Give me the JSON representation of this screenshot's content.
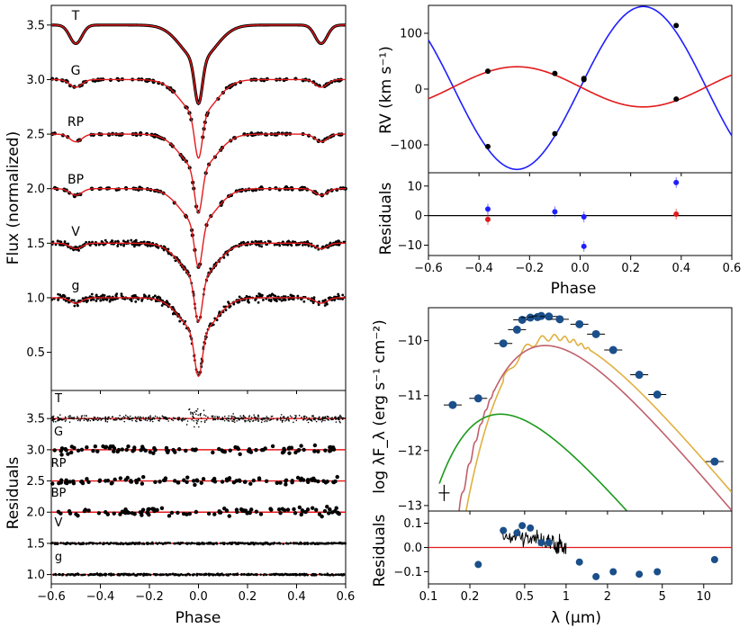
{
  "colors": {
    "model": "#e31a1c",
    "primary_rv": "#1f1fff",
    "secondary_rv": "#e31a1c",
    "sed_total": "#c0606a",
    "sed_star1": "#e0b040",
    "sed_star2": "#1a9a1a",
    "point": "#1a4f8a"
  },
  "chart_data": [
    {
      "id": "lightcurves",
      "type": "line",
      "ylabel": "Flux (normalized)",
      "xlim": [
        -0.6,
        0.6
      ],
      "ylim": [
        0.15,
        3.68
      ],
      "yticks": [
        "0.5",
        "1.0",
        "1.5",
        "2.0",
        "2.5",
        "3.0",
        "3.5"
      ],
      "bands": [
        {
          "name": "T",
          "offset": 2.5,
          "primary_depth": 0.72,
          "secondary_depth": 0.17
        },
        {
          "name": "G",
          "offset": 2.0,
          "primary_depth": 0.72,
          "secondary_depth": 0.07
        },
        {
          "name": "RP",
          "offset": 1.5,
          "primary_depth": 0.72,
          "secondary_depth": 0.07
        },
        {
          "name": "BP",
          "offset": 1.0,
          "primary_depth": 0.72,
          "secondary_depth": 0.06
        },
        {
          "name": "V",
          "offset": 0.5,
          "primary_depth": 0.72,
          "secondary_depth": 0.05
        },
        {
          "name": "g",
          "offset": 0.0,
          "primary_depth": 0.72,
          "secondary_depth": 0.05
        }
      ]
    },
    {
      "id": "lc_residuals",
      "type": "scatter",
      "xlabel": "Phase",
      "ylabel": "Residuals",
      "xlim": [
        -0.6,
        0.6
      ],
      "ylim": [
        0.85,
        3.95
      ],
      "xticks": [
        "−0.6",
        "−0.4",
        "−0.2",
        "0.0",
        "0.2",
        "0.4",
        "0.6"
      ],
      "yticks": [
        "1.0",
        "1.5",
        "2.0",
        "2.5",
        "3.0",
        "3.5"
      ],
      "bands": [
        "T",
        "G",
        "RP",
        "BP",
        "V",
        "g"
      ],
      "levels": [
        3.5,
        3.0,
        2.5,
        2.0,
        1.5,
        1.0
      ]
    },
    {
      "id": "rv",
      "type": "line",
      "ylabel": "RV (km s⁻¹)",
      "xlim": [
        -0.6,
        0.6
      ],
      "ylim": [
        -150,
        150
      ],
      "yticks": [
        "−100",
        "0",
        "100"
      ],
      "primary_model": {
        "gamma": 2,
        "K": 146
      },
      "secondary_model": {
        "gamma": 4,
        "K": 36
      },
      "primary_points": {
        "x": [
          -0.365,
          -0.1,
          0.015,
          0.38
        ],
        "y": [
          -103,
          -80,
          17,
          114
        ]
      },
      "secondary_points": {
        "x": [
          -0.365,
          -0.1,
          0.015,
          0.38
        ],
        "y": [
          32,
          28,
          19,
          -18
        ]
      }
    },
    {
      "id": "rv_residuals",
      "type": "scatter",
      "xlabel": "Phase",
      "ylabel": "Residuals",
      "xlim": [
        -0.6,
        0.6
      ],
      "ylim": [
        -13.5,
        14.5
      ],
      "xticks": [
        "−0.6",
        "−0.4",
        "−0.2",
        "0.0",
        "0.2",
        "0.4",
        "0.6"
      ],
      "yticks": [
        "−10",
        "0",
        "10"
      ],
      "primary": {
        "x": [
          -0.365,
          -0.1,
          0.015,
          0.015,
          0.38
        ],
        "y": [
          2.2,
          1.3,
          -0.4,
          -10.4,
          11.2
        ]
      },
      "secondary": {
        "x": [
          -0.365,
          0.38
        ],
        "y": [
          -1.3,
          0.5
        ]
      }
    },
    {
      "id": "sed",
      "type": "line",
      "ylabel": "log λF_λ (erg s⁻¹ cm⁻²)",
      "xscale": "log",
      "xlim": [
        0.1,
        16
      ],
      "ylim": [
        -13.1,
        -9.4
      ],
      "yticks": [
        "−13",
        "−12",
        "−11",
        "−10"
      ],
      "photometry": {
        "x": [
          0.15,
          0.23,
          0.35,
          0.44,
          0.48,
          0.55,
          0.62,
          0.66,
          0.75,
          0.9,
          1.25,
          1.65,
          2.2,
          3.4,
          4.6,
          12
        ],
        "y": [
          -11.17,
          -11.05,
          -10.05,
          -9.8,
          -9.62,
          -9.58,
          -9.57,
          -9.55,
          -9.56,
          -9.61,
          -9.7,
          -9.88,
          -10.17,
          -10.62,
          -10.98,
          -12.2
        ]
      }
    },
    {
      "id": "sed_residuals",
      "type": "scatter",
      "xlabel": "λ (μm)",
      "ylabel": "Residuals",
      "xscale": "log",
      "xlim": [
        0.1,
        16
      ],
      "ylim": [
        -0.15,
        0.15
      ],
      "xticks": [
        "0.1",
        "0.2",
        "0.5",
        "1",
        "2",
        "5",
        "10"
      ],
      "yticks": [
        "−0.1",
        "0.0",
        "0.1"
      ],
      "points": {
        "x": [
          0.23,
          0.35,
          0.44,
          0.48,
          0.55,
          0.66,
          0.75,
          1.25,
          1.65,
          2.2,
          3.4,
          4.6,
          12
        ],
        "y": [
          -0.07,
          0.07,
          0.06,
          0.09,
          0.08,
          0.02,
          0.02,
          -0.06,
          -0.12,
          -0.1,
          -0.11,
          -0.1,
          -0.05
        ]
      }
    }
  ]
}
